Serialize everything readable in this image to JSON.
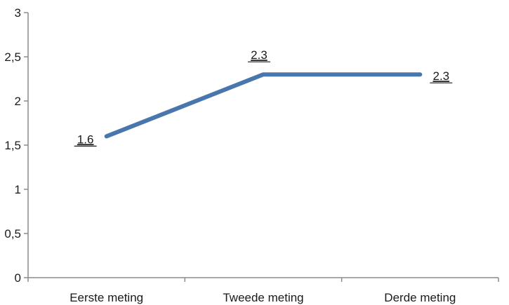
{
  "chart_data": {
    "type": "line",
    "categories": [
      "Eerste meting",
      "Tweede meting",
      "Derde meting"
    ],
    "series": [
      {
        "values": [
          1.6,
          2.3,
          2.3
        ],
        "color": "#4a76ae",
        "data_labels": [
          "1.6",
          "2.3",
          "2.3"
        ]
      }
    ],
    "ylim": [
      0,
      3
    ],
    "y_ticks": [
      0,
      0.5,
      1,
      1.5,
      2,
      2.5,
      3
    ],
    "y_tick_labels": [
      "0",
      "0,5",
      "1",
      "1,5",
      "2",
      "2,5",
      "3"
    ],
    "title": "",
    "xlabel": "",
    "ylabel": "",
    "grid": false,
    "legend": "none",
    "colors": {
      "axis": "#8c8c8c",
      "text": "#1a1a1a"
    }
  }
}
